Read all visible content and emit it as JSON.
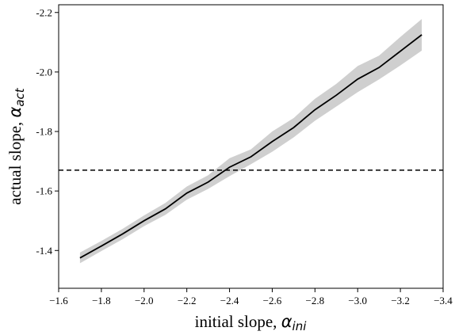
{
  "chart_data": {
    "type": "line",
    "xlabel": "initial slope, ",
    "xlabel_symbol": "α",
    "xlabel_sub": "ini",
    "ylabel": "actual slope, ",
    "ylabel_symbol": "α",
    "ylabel_sub": "act",
    "xlim": [
      -1.6,
      -3.4
    ],
    "ylim": [
      -1.273,
      -2.226
    ],
    "xticks": [
      -1.6,
      -1.8,
      -2.0,
      -2.2,
      -2.4,
      -2.6,
      -2.8,
      -3.0,
      -3.2,
      -3.4
    ],
    "xtick_labels": [
      "−1.6",
      "−1.8",
      "−2.0",
      "−2.2",
      "−2.4",
      "−2.6",
      "−2.8",
      "−3.0",
      "−3.2",
      "−3.4"
    ],
    "yticks": [
      -1.4,
      -1.6,
      -1.8,
      -2.0,
      -2.2
    ],
    "ytick_labels": [
      "-1.4",
      "-1.6",
      "-1.8",
      "-2.0",
      "-2.2"
    ],
    "grid": false,
    "series": [
      {
        "x": [
          -1.7,
          -1.8,
          -1.9,
          -2.0,
          -2.1,
          -2.2,
          -2.3,
          -2.4,
          -2.5,
          -2.6,
          -2.7,
          -2.8,
          -2.9,
          -3.0,
          -3.1,
          -3.2,
          -3.3
        ],
        "y": [
          -1.375,
          -1.415,
          -1.456,
          -1.5,
          -1.54,
          -1.593,
          -1.63,
          -1.68,
          -1.715,
          -1.766,
          -1.813,
          -1.873,
          -1.922,
          -1.976,
          -2.015,
          -2.07,
          -2.125
        ],
        "band_upper": [
          -1.393,
          -1.432,
          -1.473,
          -1.518,
          -1.56,
          -1.615,
          -1.653,
          -1.71,
          -1.74,
          -1.8,
          -1.845,
          -1.91,
          -1.96,
          -2.02,
          -2.055,
          -2.118,
          -2.178
        ],
        "band_lower": [
          -1.357,
          -1.398,
          -1.438,
          -1.482,
          -1.52,
          -1.571,
          -1.607,
          -1.65,
          -1.69,
          -1.732,
          -1.78,
          -1.836,
          -1.884,
          -1.932,
          -1.975,
          -2.022,
          -2.072
        ],
        "color": "#000000",
        "band_color": "#cfcfcf"
      }
    ],
    "hline": {
      "y": -1.67,
      "style": "dashed",
      "color": "#000000"
    }
  }
}
